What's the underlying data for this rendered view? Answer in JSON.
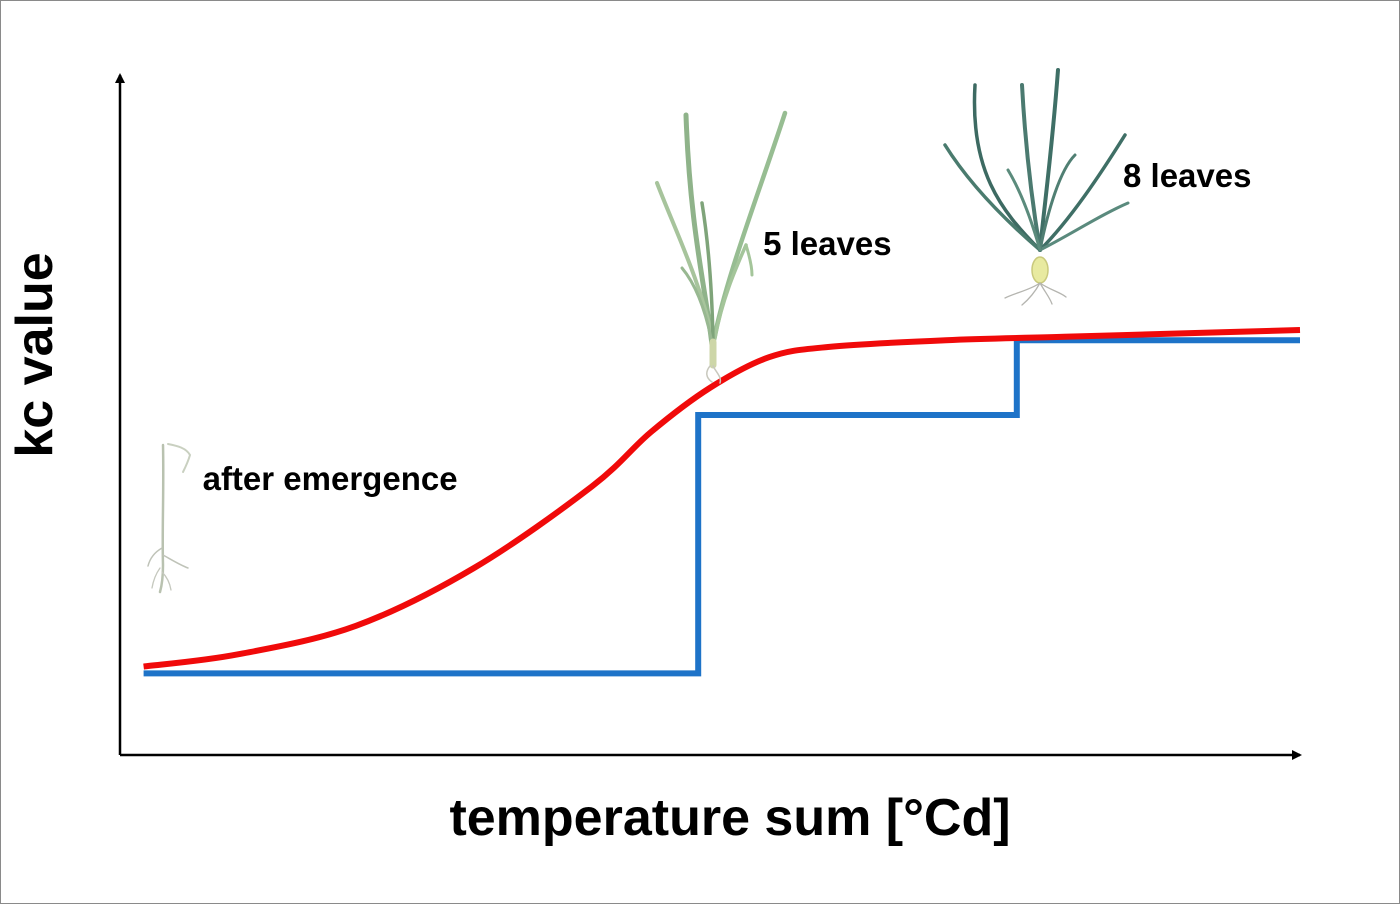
{
  "colors": {
    "background": "#ffffff",
    "axis": "#000000",
    "step_series": "#1e73c8",
    "curve_series": "#f00a0a"
  },
  "chart_data": {
    "type": "line",
    "title": "",
    "xlabel": "temperature sum [°Cd]",
    "ylabel": "kc value",
    "xlim": [
      0,
      10
    ],
    "ylim": [
      0,
      10
    ],
    "grid": false,
    "legend": "none",
    "ticks": "none",
    "series": [
      {
        "style": "step",
        "color": "#1e73c8",
        "x": [
          0.2,
          4.9,
          4.9,
          7.6,
          7.6,
          10.0
        ],
        "y": [
          1.2,
          1.2,
          5.0,
          5.0,
          6.1,
          6.1
        ]
      },
      {
        "style": "smooth",
        "color": "#f00a0a",
        "x": [
          0.2,
          1.0,
          2.0,
          3.0,
          4.0,
          4.5,
          5.0,
          5.5,
          6.0,
          7.0,
          8.0,
          9.0,
          10.0
        ],
        "y": [
          1.3,
          1.48,
          1.9,
          2.75,
          3.95,
          4.75,
          5.4,
          5.85,
          6.0,
          6.1,
          6.15,
          6.2,
          6.25
        ]
      }
    ],
    "annotations": [
      {
        "text": "after emergence",
        "x": 0.7,
        "y": 3.9
      },
      {
        "text": "5 leaves",
        "x": 5.45,
        "y": 7.35
      },
      {
        "text": "8 leaves",
        "x": 8.5,
        "y": 8.35
      }
    ]
  }
}
